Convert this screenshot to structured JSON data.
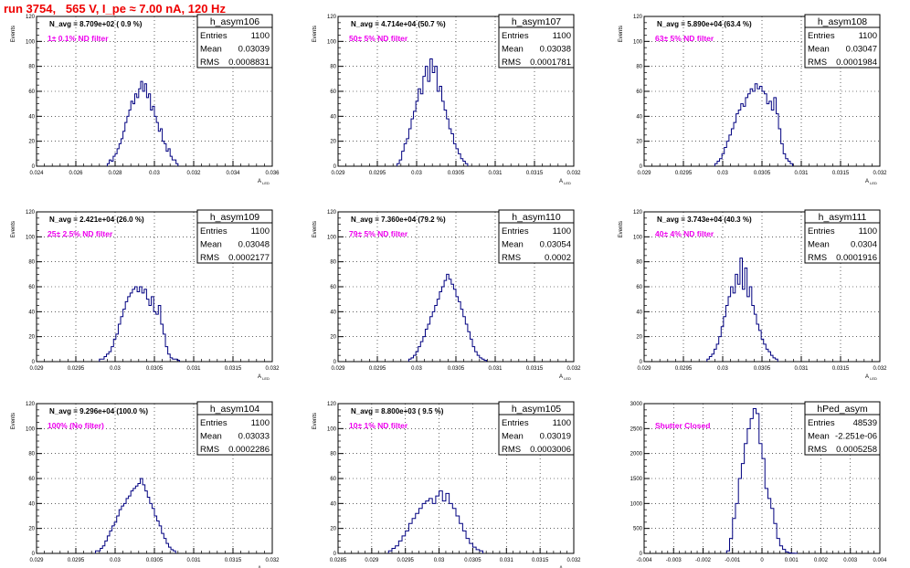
{
  "page": {
    "title": "run 3754,   565 V, I_pe ≈ 7.00 nA, 120 Hz"
  },
  "chart_data": [
    {
      "type": "histogram",
      "name": "h_asym106",
      "nlabel": "N_avg = 8.709e+02 ( 0.9 %)",
      "filter": "1± 0.1% ND filter",
      "stats": {
        "entries": "1100",
        "mean": "0.03039",
        "rms": "0.0008831"
      },
      "xlabel": "A_LED",
      "ylabel": "Events",
      "xlim": [
        0.024,
        0.036
      ],
      "ylim": [
        0,
        120
      ],
      "xticks": [
        0.024,
        0.026,
        0.028,
        0.03,
        0.032,
        0.034,
        0.036
      ],
      "xtick_labels": [
        "0.024",
        "0.026",
        "0.028",
        "0.03",
        "0.032",
        "0.034",
        "0.036"
      ],
      "yticks": [
        0,
        20,
        40,
        60,
        80,
        100,
        120
      ],
      "ytick_labels": [
        "0",
        "20",
        "40",
        "60",
        "80",
        "100",
        "120"
      ],
      "bins": {
        "lo": 0.0276,
        "width": 0.0001,
        "counts": [
          2,
          5,
          4,
          8,
          10,
          14,
          18,
          22,
          28,
          35,
          40,
          45,
          52,
          50,
          58,
          55,
          62,
          68,
          60,
          66,
          55,
          58,
          45,
          48,
          40,
          35,
          28,
          30,
          20,
          18,
          12,
          14,
          8,
          5,
          5,
          2
        ]
      }
    },
    {
      "type": "histogram",
      "name": "h_asym107",
      "nlabel": "N_avg = 4.714e+04 (50.7 %)",
      "filter": "50± 5% ND filter",
      "stats": {
        "entries": "1100",
        "mean": "0.03038",
        "rms": "0.0001781"
      },
      "xlabel": "A_LED",
      "ylabel": "Events",
      "xlim": [
        0.029,
        0.032
      ],
      "ylim": [
        0,
        120
      ],
      "xticks": [
        0.029,
        0.0295,
        0.03,
        0.0305,
        0.031,
        0.0315,
        0.032
      ],
      "xtick_labels": [
        "0.029",
        "0.0295",
        "0.03",
        "0.0305",
        "0.031",
        "0.0315",
        "0.032"
      ],
      "yticks": [
        0,
        20,
        40,
        60,
        80,
        100,
        120
      ],
      "ytick_labels": [
        "0",
        "20",
        "40",
        "60",
        "80",
        "100",
        "120"
      ],
      "bins": {
        "lo": 0.02975,
        "width": 3e-05,
        "counts": [
          2,
          5,
          12,
          18,
          22,
          30,
          38,
          44,
          52,
          62,
          58,
          72,
          80,
          68,
          86,
          75,
          80,
          60,
          64,
          52,
          45,
          38,
          30,
          26,
          18,
          14,
          10,
          6,
          4,
          2
        ]
      }
    },
    {
      "type": "histogram",
      "name": "h_asym108",
      "nlabel": "N_avg = 5.890e+04 (63.4 %)",
      "filter": "63± 5% ND filter",
      "stats": {
        "entries": "1100",
        "mean": "0.03047",
        "rms": "0.0001984"
      },
      "xlabel": "A_LED",
      "ylabel": "Events",
      "xlim": [
        0.029,
        0.032
      ],
      "ylim": [
        0,
        120
      ],
      "xticks": [
        0.029,
        0.0295,
        0.03,
        0.0305,
        0.031,
        0.0315,
        0.032
      ],
      "xtick_labels": [
        "0.029",
        "0.0295",
        "0.03",
        "0.0305",
        "0.031",
        "0.0315",
        "0.032"
      ],
      "yticks": [
        0,
        20,
        40,
        60,
        80,
        100,
        120
      ],
      "ytick_labels": [
        "0",
        "20",
        "40",
        "60",
        "80",
        "100",
        "120"
      ],
      "bins": {
        "lo": 0.0299,
        "width": 3e-05,
        "counts": [
          2,
          4,
          6,
          10,
          15,
          20,
          25,
          30,
          35,
          42,
          45,
          50,
          48,
          55,
          58,
          62,
          60,
          66,
          62,
          64,
          60,
          58,
          50,
          52,
          45,
          55,
          42,
          30,
          18,
          10,
          6,
          4,
          2
        ]
      }
    },
    {
      "type": "histogram",
      "name": "h_asym109",
      "nlabel": "N_avg = 2.421e+04 (26.0 %)",
      "filter": "25± 2.5% ND filter",
      "stats": {
        "entries": "1100",
        "mean": "0.03048",
        "rms": "0.0002177"
      },
      "xlabel": "A_LED",
      "ylabel": "Events",
      "xlim": [
        0.029,
        0.032
      ],
      "ylim": [
        0,
        120
      ],
      "xticks": [
        0.029,
        0.0295,
        0.03,
        0.0305,
        0.031,
        0.0315,
        0.032
      ],
      "xtick_labels": [
        "0.029",
        "0.0295",
        "0.03",
        "0.0305",
        "0.031",
        "0.0315",
        "0.032"
      ],
      "yticks": [
        0,
        20,
        40,
        60,
        80,
        100,
        120
      ],
      "ytick_labels": [
        "0",
        "20",
        "40",
        "60",
        "80",
        "100",
        "120"
      ],
      "bins": {
        "lo": 0.0298,
        "width": 3e-05,
        "counts": [
          2,
          2,
          4,
          6,
          8,
          12,
          18,
          22,
          30,
          36,
          42,
          48,
          52,
          55,
          58,
          60,
          56,
          60,
          55,
          58,
          50,
          45,
          52,
          40,
          38,
          45,
          30,
          22,
          12,
          6,
          3,
          2,
          2,
          1
        ]
      }
    },
    {
      "type": "histogram",
      "name": "h_asym110",
      "nlabel": "N_avg = 7.360e+04 (79.2 %)",
      "filter": "79± 5% ND filter",
      "stats": {
        "entries": "1100",
        "mean": "0.03054",
        "rms": "0.0002"
      },
      "xlabel": "A_LED",
      "ylabel": "Events",
      "xlim": [
        0.029,
        0.032
      ],
      "ylim": [
        0,
        120
      ],
      "xticks": [
        0.029,
        0.0295,
        0.03,
        0.0305,
        0.031,
        0.0315,
        0.032
      ],
      "xtick_labels": [
        "0.029",
        "0.0295",
        "0.03",
        "0.0305",
        "0.031",
        "0.0315",
        "0.032"
      ],
      "yticks": [
        0,
        20,
        40,
        60,
        80,
        100,
        120
      ],
      "ytick_labels": [
        "0",
        "20",
        "40",
        "60",
        "80",
        "100",
        "120"
      ],
      "bins": {
        "lo": 0.0299,
        "width": 3e-05,
        "counts": [
          2,
          3,
          5,
          8,
          12,
          16,
          20,
          26,
          30,
          36,
          40,
          45,
          50,
          56,
          60,
          65,
          70,
          66,
          62,
          58,
          52,
          48,
          42,
          36,
          30,
          24,
          18,
          12,
          8,
          5,
          3,
          2,
          1
        ]
      }
    },
    {
      "type": "histogram",
      "name": "h_asym111",
      "nlabel": "N_avg = 3.743e+04 (40.3 %)",
      "filter": "40± 4% ND filter",
      "stats": {
        "entries": "1100",
        "mean": "0.0304",
        "rms": "0.0001916"
      },
      "xlabel": "A_LED",
      "ylabel": "Events",
      "xlim": [
        0.029,
        0.032
      ],
      "ylim": [
        0,
        120
      ],
      "xticks": [
        0.029,
        0.0295,
        0.03,
        0.0305,
        0.031,
        0.0315,
        0.032
      ],
      "xtick_labels": [
        "0.029",
        "0.0295",
        "0.03",
        "0.0305",
        "0.031",
        "0.0315",
        "0.032"
      ],
      "yticks": [
        0,
        20,
        40,
        60,
        80,
        100,
        120
      ],
      "ytick_labels": [
        "0",
        "20",
        "40",
        "60",
        "80",
        "100",
        "120"
      ],
      "bins": {
        "lo": 0.0298,
        "width": 3e-05,
        "counts": [
          2,
          4,
          6,
          10,
          14,
          20,
          28,
          36,
          45,
          52,
          60,
          55,
          70,
          62,
          83,
          58,
          75,
          52,
          60,
          45,
          38,
          30,
          25,
          18,
          14,
          10,
          8,
          5,
          3,
          2
        ]
      }
    },
    {
      "type": "histogram",
      "name": "h_asym104",
      "nlabel": "N_avg = 9.296e+04 (100.0 %)",
      "filter": "100% (No filter)",
      "stats": {
        "entries": "1100",
        "mean": "0.03033",
        "rms": "0.0002286"
      },
      "xlabel": "A_LED",
      "ylabel": "Events",
      "xlim": [
        0.029,
        0.032
      ],
      "ylim": [
        0,
        120
      ],
      "xticks": [
        0.029,
        0.0295,
        0.03,
        0.0305,
        0.031,
        0.0315,
        0.032
      ],
      "xtick_labels": [
        "0.029",
        "0.0295",
        "0.03",
        "0.0305",
        "0.031",
        "0.0315",
        "0.032"
      ],
      "yticks": [
        0,
        20,
        40,
        60,
        80,
        100,
        120
      ],
      "ytick_labels": [
        "0",
        "20",
        "40",
        "60",
        "80",
        "100",
        "120"
      ],
      "bins": {
        "lo": 0.02975,
        "width": 3e-05,
        "counts": [
          2,
          2,
          4,
          6,
          10,
          14,
          18,
          22,
          25,
          30,
          35,
          38,
          40,
          44,
          46,
          50,
          52,
          54,
          56,
          60,
          55,
          50,
          45,
          40,
          36,
          30,
          26,
          22,
          16,
          12,
          8,
          5,
          3,
          2
        ]
      }
    },
    {
      "type": "histogram",
      "name": "h_asym105",
      "nlabel": "N_avg = 8.800e+03 ( 9.5 %)",
      "filter": "10± 1% ND filter",
      "stats": {
        "entries": "1100",
        "mean": "0.03019",
        "rms": "0.0003006"
      },
      "xlabel": "A_LED",
      "ylabel": "Events",
      "xlim": [
        0.0285,
        0.032
      ],
      "ylim": [
        0,
        120
      ],
      "xticks": [
        0.0285,
        0.029,
        0.0295,
        0.03,
        0.0305,
        0.031,
        0.0315,
        0.032
      ],
      "xtick_labels": [
        "0.0285",
        "0.029",
        "0.0295",
        "0.03",
        "0.0305",
        "0.031",
        "0.0315",
        "0.032"
      ],
      "yticks": [
        0,
        20,
        40,
        60,
        80,
        100,
        120
      ],
      "ytick_labels": [
        "0",
        "20",
        "40",
        "60",
        "80",
        "100",
        "120"
      ],
      "bins": {
        "lo": 0.02925,
        "width": 5e-05,
        "counts": [
          2,
          4,
          6,
          10,
          14,
          18,
          24,
          28,
          32,
          36,
          40,
          42,
          44,
          40,
          46,
          50,
          42,
          48,
          40,
          36,
          30,
          24,
          18,
          12,
          8,
          5,
          3,
          2
        ]
      }
    },
    {
      "type": "histogram",
      "name": "hPed_asym",
      "nlabel": "",
      "filter": "Shutter Closed",
      "stats": {
        "entries": "48539",
        "mean": "-2.251e-06",
        "rms": "0.0005258"
      },
      "xlabel": "",
      "ylabel": "",
      "xlim": [
        -0.004,
        0.004
      ],
      "ylim": [
        0,
        3000
      ],
      "xticks": [
        -0.004,
        -0.003,
        -0.002,
        -0.001,
        0,
        0.001,
        0.002,
        0.003,
        0.004
      ],
      "xtick_labels": [
        "-0.004",
        "-0.003",
        "-0.002",
        "-0.001",
        "0",
        "0.001",
        "0.002",
        "0.003",
        "0.004"
      ],
      "yticks": [
        0,
        500,
        1000,
        1500,
        2000,
        2500,
        3000
      ],
      "ytick_labels": [
        "0",
        "500",
        "1000",
        "1500",
        "2000",
        "2500",
        "3000"
      ],
      "bins": {
        "lo": -0.0012,
        "width": 0.0001,
        "counts": [
          50,
          300,
          700,
          1000,
          1500,
          1800,
          2200,
          2500,
          2700,
          2900,
          2800,
          2200,
          1900,
          1300,
          1100,
          900,
          600,
          300,
          150,
          80,
          30,
          10,
          5,
          2
        ]
      }
    }
  ]
}
